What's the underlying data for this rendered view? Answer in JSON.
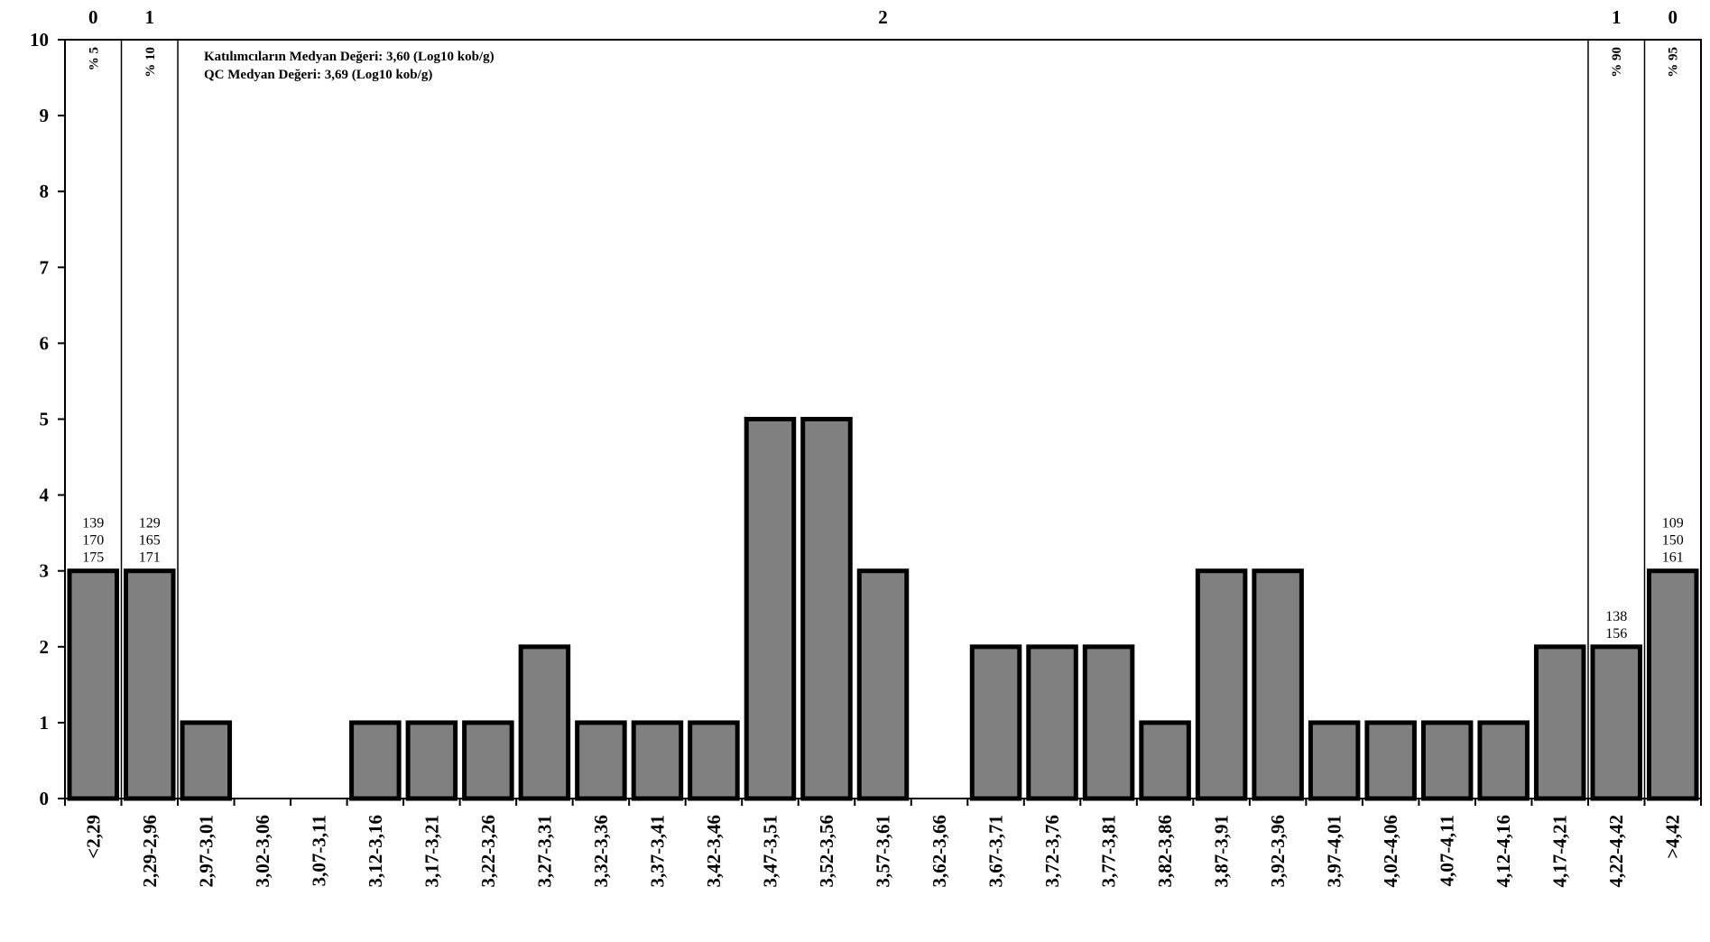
{
  "chart_data": {
    "type": "bar",
    "categories": [
      "<2,29",
      "2,29-2,96",
      "2,97-3,01",
      "3,02-3,06",
      "3,07-3,11",
      "3,12-3,16",
      "3,17-3,21",
      "3,22-3,26",
      "3,27-3,31",
      "3,32-3,36",
      "3,37-3,41",
      "3,42-3,46",
      "3,47-3,51",
      "3,52-3,56",
      "3,57-3,61",
      "3,62-3,66",
      "3,67-3,71",
      "3,72-3,76",
      "3,77-3,81",
      "3,82-3,86",
      "3,87-3,91",
      "3,92-3,96",
      "3,97-4,01",
      "4,02-4,06",
      "4,07-4,11",
      "4,12-4,16",
      "4,17-4,21",
      "4,22-4,42",
      ">4,42"
    ],
    "values": [
      3,
      3,
      1,
      0,
      0,
      1,
      1,
      1,
      2,
      1,
      1,
      1,
      5,
      5,
      3,
      0,
      2,
      2,
      2,
      1,
      3,
      3,
      1,
      1,
      1,
      1,
      2,
      2,
      3
    ],
    "ylim": [
      0,
      10
    ],
    "yticks": [
      "0",
      "1",
      "2",
      "3",
      "4",
      "5",
      "6",
      "7",
      "8",
      "9",
      "10"
    ],
    "grid": false,
    "annotations": {
      "median_participants": "Katılımcıların Medyan Değeri: 3,60 (Log10 kob/g)",
      "median_qc": "QC Medyan Değeri: 3,69  (Log10 kob/g)"
    },
    "percentile_labels": [
      "% 5",
      "% 10",
      "% 90",
      "% 95"
    ],
    "scores": [
      "0",
      "1",
      "2",
      "1",
      "0"
    ],
    "bar_labels": [
      {
        "category_index": 0,
        "lines": [
          "139",
          "170",
          "175"
        ]
      },
      {
        "category_index": 1,
        "lines": [
          "129",
          "165",
          "171"
        ]
      },
      {
        "category_index": 27,
        "lines": [
          "138",
          "156"
        ]
      },
      {
        "category_index": 28,
        "lines": [
          "109",
          "150",
          "161"
        ]
      }
    ]
  }
}
